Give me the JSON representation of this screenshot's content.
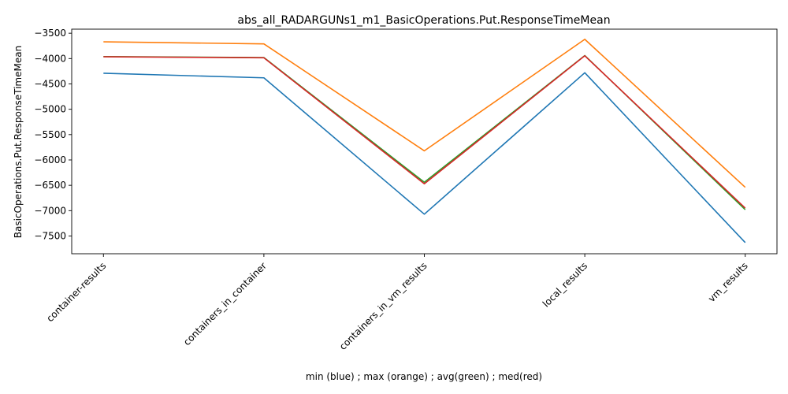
{
  "chart_data": {
    "type": "line",
    "title": "abs_all_RADARGUNs1_m1_BasicOperations.Put.ResponseTimeMean",
    "xlabel": "min (blue) ; max (orange) ; avg(green) ; med(red)",
    "ylabel": "BasicOperations.Put.ResponseTimeMean",
    "categories": [
      "container-results",
      "containers_in_container",
      "containers_in_vm_results",
      "local_results",
      "vm_results"
    ],
    "ylim": [
      -7850,
      -3420
    ],
    "yticks": [
      -3500,
      -4000,
      -4500,
      -5000,
      -5500,
      -6000,
      -6500,
      -7000,
      -7500
    ],
    "grid": false,
    "series": [
      {
        "color": "#1f77b4",
        "values": [
          -4290,
          -4380,
          -7070,
          -4280,
          -7630
        ]
      },
      {
        "color": "#ff7f0e",
        "values": [
          -3670,
          -3710,
          -5820,
          -3620,
          -6540
        ]
      },
      {
        "color": "#2ca02c",
        "values": [
          -3960,
          -3980,
          -6440,
          -3940,
          -6980
        ]
      },
      {
        "color": "#d62728",
        "values": [
          -3965,
          -3985,
          -6470,
          -3945,
          -6950
        ]
      }
    ]
  }
}
